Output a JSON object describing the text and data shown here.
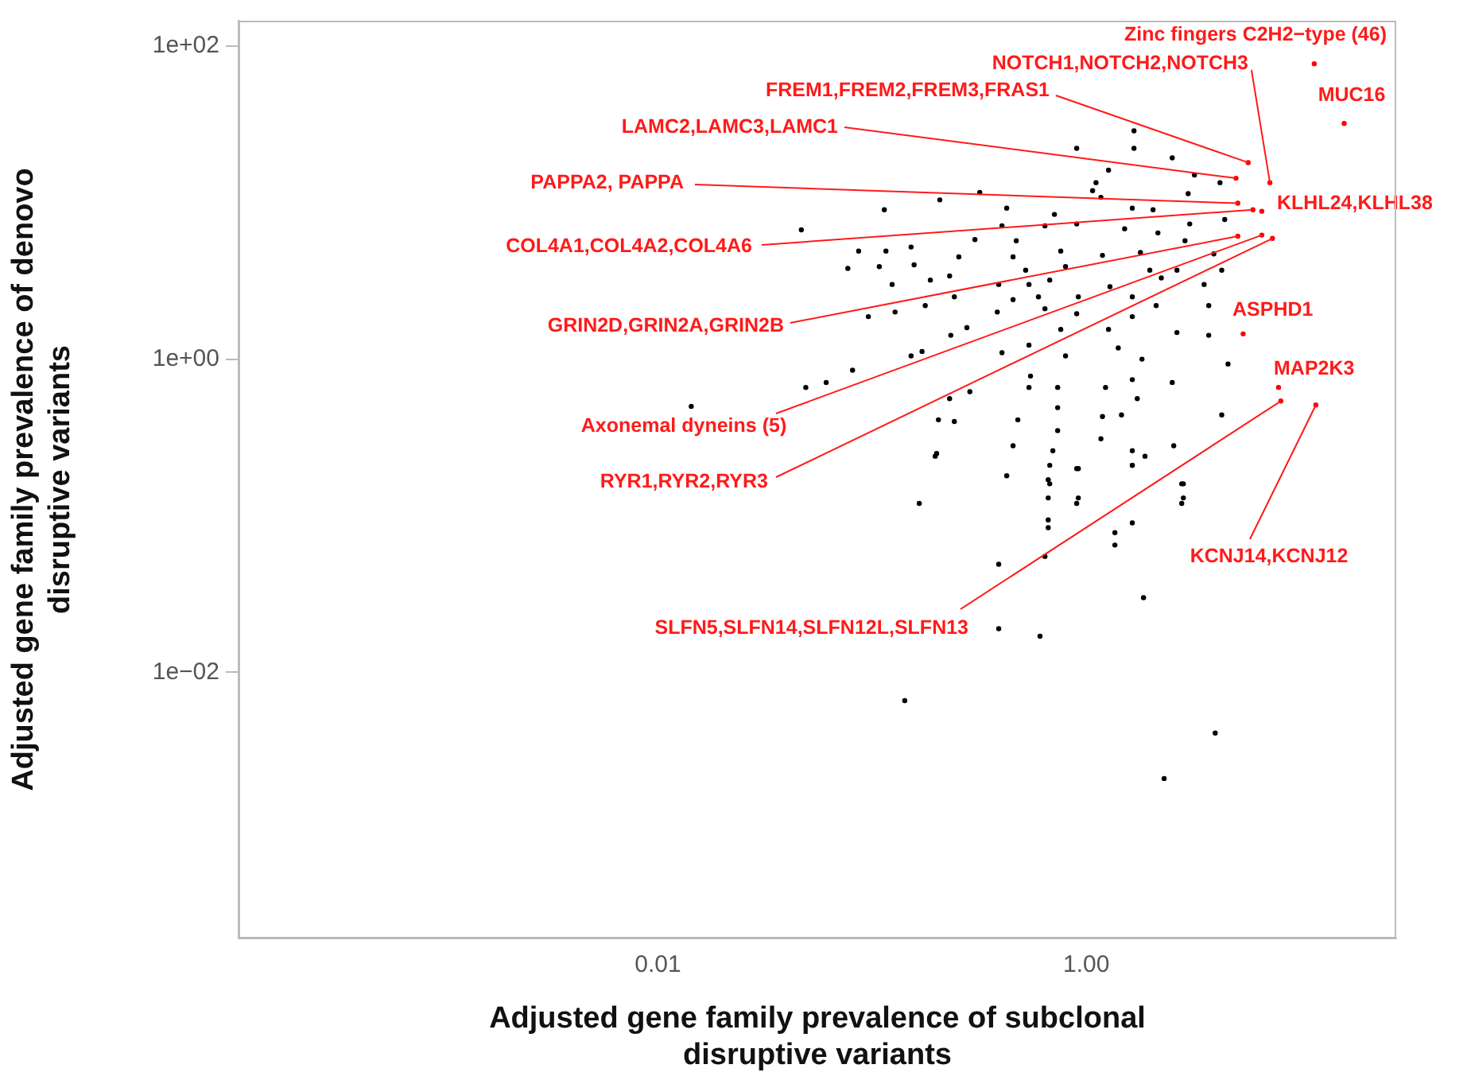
{
  "chart_data": {
    "type": "scatter",
    "xlabel": "Adjusted gene family prevalence of subclonal disruptive variants",
    "ylabel": "Adjusted gene family prevalence of denovo disruptive variants",
    "log": "xy",
    "grid": false,
    "legend": false,
    "marker": "circle",
    "xlim": [
      0.00011,
      28
    ],
    "ylim": [
      0.0002,
      145
    ],
    "xticks": [
      {
        "value": 0.01,
        "label": "0.01"
      },
      {
        "value": 1,
        "label": "1.00"
      }
    ],
    "yticks": [
      {
        "value": 100,
        "label": "1e+02"
      },
      {
        "value": 1,
        "label": "1e+00"
      },
      {
        "value": 0.01,
        "label": "1e−02"
      }
    ],
    "series": [
      {
        "color": "#000000",
        "x": [
          0.902,
          1.67,
          1.67,
          2.52,
          1.27,
          3.2,
          4.21,
          1.11,
          1.07,
          0.318,
          2.99,
          0.207,
          1.17,
          0.114,
          0.425,
          1.64,
          2.05,
          0.71,
          0.641,
          0.404,
          4.43,
          3.04,
          0.902,
          1.51,
          0.302,
          0.471,
          2.16,
          2.89,
          0.0865,
          0.116,
          0.152,
          0.254,
          0.455,
          0.76,
          1.19,
          1.79,
          3.94,
          0.077,
          0.108,
          0.157,
          0.23,
          0.521,
          0.8,
          1.98,
          2.65,
          4.29,
          0.124,
          0.187,
          0.39,
          0.54,
          0.675,
          1.29,
          2.24,
          3.55,
          0.242,
          0.455,
          0.598,
          0.918,
          1.64,
          0.096,
          0.128,
          0.177,
          0.384,
          0.641,
          0.902,
          2.12,
          3.73,
          0.233,
          0.277,
          0.404,
          0.54,
          0.76,
          1.27,
          1.64,
          2.65,
          3.73,
          0.152,
          0.171,
          0.081,
          0.549,
          0.8,
          1.41,
          1.82,
          2.52,
          4.59,
          0.286,
          0.23,
          0.54,
          0.735,
          1.23,
          1.64,
          1.73,
          0.204,
          0.242,
          0.479,
          0.735,
          1.19,
          1.46,
          4.29,
          0.455,
          0.735,
          0.197,
          0.698,
          1.17,
          1.64,
          1.88,
          2.56,
          0.425,
          0.675,
          0.902,
          1.64,
          0.166,
          0.902,
          2.79,
          2.79,
          0.675,
          0.0467,
          0.0143,
          0.049,
          0.061,
          0.2,
          0.664,
          0.918,
          0.918,
          0.664,
          0.664,
          0.664,
          1.64,
          1.64,
          2.84,
          2.84,
          1.36,
          1.36,
          0.39,
          0.641,
          1.85,
          0.39,
          0.608,
          0.142,
          4.0,
          2.31
        ],
        "values": [
          22.2,
          28.7,
          22.2,
          19.3,
          16.1,
          15,
          13.4,
          13.4,
          11.9,
          11.6,
          11.4,
          10.4,
          10.8,
          9.0,
          9.2,
          9.2,
          9.0,
          8.4,
          7.1,
          7.1,
          7.8,
          7.3,
          7.3,
          6.8,
          5.8,
          5.7,
          6.4,
          5.7,
          4.9,
          4.9,
          5.2,
          4.5,
          4.5,
          4.9,
          4.6,
          4.8,
          4.7,
          3.8,
          3.9,
          4.0,
          3.4,
          3.7,
          3.9,
          3.7,
          3.7,
          3.7,
          3.0,
          3.2,
          3.0,
          3.0,
          3.2,
          2.9,
          3.3,
          3.0,
          2.5,
          2.4,
          2.5,
          2.5,
          2.5,
          1.87,
          2.0,
          2.2,
          2.0,
          2.1,
          1.95,
          2.2,
          2.2,
          1.42,
          1.59,
          1.1,
          1.23,
          1.55,
          1.55,
          1.87,
          1.48,
          1.42,
          1.05,
          1.12,
          0.85,
          0.78,
          1.05,
          1.18,
          1.0,
          0.71,
          0.93,
          0.62,
          0.56,
          0.66,
          0.66,
          0.66,
          0.74,
          0.56,
          0.41,
          0.4,
          0.41,
          0.49,
          0.43,
          0.44,
          0.44,
          0.28,
          0.35,
          0.24,
          0.26,
          0.31,
          0.26,
          0.24,
          0.28,
          0.18,
          0.21,
          0.2,
          0.21,
          0.12,
          0.12,
          0.16,
          0.12,
          0.16,
          6.7,
          0.5,
          0.66,
          0.71,
          0.25,
          0.17,
          0.2,
          0.13,
          0.13,
          0.094,
          0.084,
          0.21,
          0.09,
          0.16,
          0.13,
          0.078,
          0.065,
          0.049,
          0.055,
          0.03,
          0.019,
          0.017,
          0.0066,
          0.0041,
          0.0021
        ]
      },
      {
        "color": "#ff0000",
        "x": [
          11.6,
          16,
          7.2,
          5.7,
          5.0,
          5.1,
          6.0,
          6.6,
          5.1,
          6.6,
          7.4,
          5.4,
          7.9,
          8.1,
          11.8
        ],
        "values": [
          77,
          32,
          13.4,
          18,
          14.3,
          9.9,
          9.0,
          8.8,
          6.1,
          6.2,
          5.9,
          1.45,
          0.66,
          0.54,
          0.51
        ]
      }
    ],
    "annotations": [
      {
        "text": "Zinc fingers C2H2−type (46)",
        "x": 11.6,
        "y": 77
      },
      {
        "text": "MUC16",
        "x": 16,
        "y": 32
      },
      {
        "text": "NOTCH1,NOTCH2,NOTCH3",
        "x": 7.2,
        "y": 13.4
      },
      {
        "text": "FREM1,FREM2,FREM3,FRAS1",
        "x": 5.7,
        "y": 18
      },
      {
        "text": "LAMC2,LAMC3,LAMC1",
        "x": 5.0,
        "y": 14.3
      },
      {
        "text": "PAPPA2, PAPPA",
        "x": 5.1,
        "y": 9.9
      },
      {
        "text": "COL4A1,COL4A2,COL4A6",
        "x": 6.0,
        "y": 9.0
      },
      {
        "text": "KLHL24,KLHL38",
        "x": 6.6,
        "y": 8.8
      },
      {
        "text": "GRIN2D,GRIN2A,GRIN2B",
        "x": 5.1,
        "y": 6.1
      },
      {
        "text": "Axonemal dyneins (5)",
        "x": 6.6,
        "y": 6.2
      },
      {
        "text": "RYR1,RYR2,RYR3",
        "x": 7.4,
        "y": 5.9
      },
      {
        "text": "ASPHD1",
        "x": 5.4,
        "y": 1.45
      },
      {
        "text": "MAP2K3",
        "x": 7.9,
        "y": 0.66
      },
      {
        "text": "SLFN5,SLFN14,SLFN12L,SLFN13",
        "x": 8.1,
        "y": 0.54
      },
      {
        "text": "KCNJ14,KCNJ12",
        "x": 11.8,
        "y": 0.51
      }
    ]
  }
}
